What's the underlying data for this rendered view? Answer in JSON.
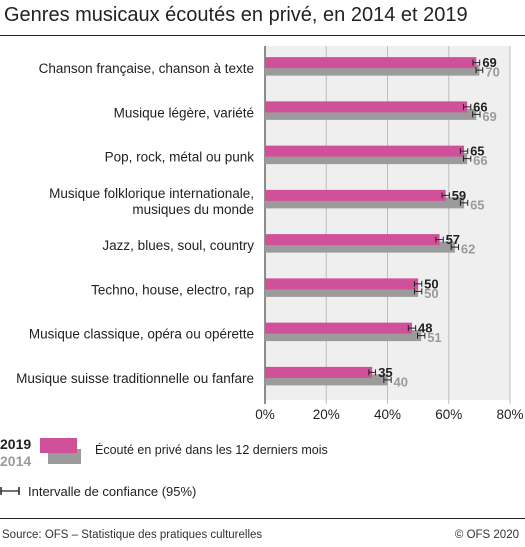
{
  "title": "Genres musicaux écoutés en privé, en 2014 et 2019",
  "chart_data": {
    "type": "bar",
    "orientation": "horizontal",
    "categories": [
      [
        "Chanson française, chanson à texte"
      ],
      [
        "Musique légère, variété"
      ],
      [
        "Pop, rock, métal ou punk"
      ],
      [
        "Musique folklorique internationale,",
        "musiques du monde"
      ],
      [
        "Jazz, blues, soul, country"
      ],
      [
        "Techno, house, electro, rap"
      ],
      [
        "Musique classique, opéra ou opérette"
      ],
      [
        "Musique suisse traditionnelle ou fanfare"
      ]
    ],
    "series": [
      {
        "name": "2019",
        "color": "#d1509a",
        "label_color": "#222222",
        "values": [
          69,
          66,
          65,
          59,
          57,
          50,
          48,
          35
        ],
        "ci": [
          1.1,
          1.2,
          1.2,
          1.2,
          1.2,
          1.2,
          1.2,
          1.1
        ]
      },
      {
        "name": "2014",
        "color": "#9b9b9b",
        "label_color": "#9b9b9b",
        "values": [
          70,
          69,
          66,
          65,
          62,
          50,
          51,
          40
        ],
        "ci": [
          1.1,
          1.2,
          1.2,
          1.2,
          1.2,
          1.2,
          1.2,
          1.2
        ]
      }
    ],
    "xlim": [
      0,
      80
    ],
    "xticks": [
      "0%",
      "20%",
      "40%",
      "60%",
      "80%"
    ],
    "xtick_values": [
      0,
      20,
      40,
      60,
      80
    ],
    "grid": true
  },
  "legend": {
    "year_2019": "2019",
    "year_2014": "2014",
    "description": "Écouté en privé dans les 12 derniers mois",
    "ci_label": "Intervalle de confiance (95%)"
  },
  "footer": {
    "source": "Source: OFS – Statistique des pratiques culturelles",
    "copyright": "© OFS 2020"
  }
}
